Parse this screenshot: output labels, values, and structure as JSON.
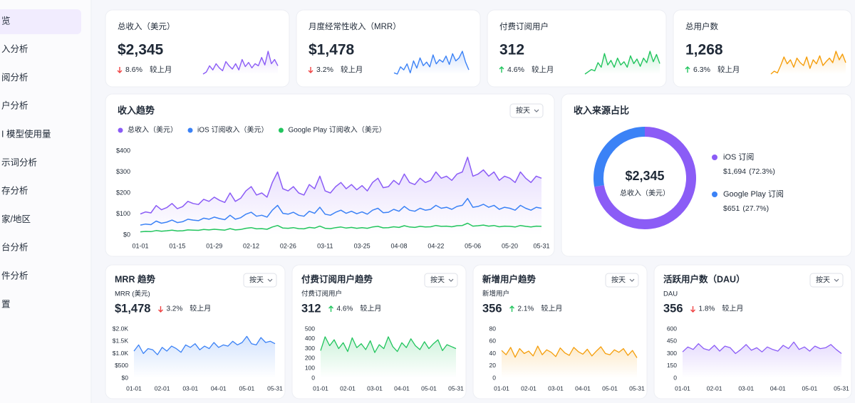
{
  "sidebar": {
    "items": [
      "览",
      "入分析",
      "阅分析",
      "户分析",
      "I 模型使用量",
      "示词分析",
      "存分析",
      "家/地区",
      "台分析",
      "件分析",
      "置"
    ],
    "active": 0
  },
  "kpis": [
    {
      "title": "总收入（美元）",
      "value": "$2,345",
      "change": "8.6%",
      "direction": "down",
      "compare": "较上月",
      "color": "#8b5cf6",
      "spark": [
        20,
        25,
        40,
        30,
        45,
        35,
        28,
        50,
        40,
        32,
        45,
        30,
        55,
        38,
        48,
        35,
        45,
        40,
        60,
        42,
        75,
        45,
        55,
        40
      ]
    },
    {
      "title": "月度经常性收入（MRR）",
      "value": "$1,478",
      "change": "3.2%",
      "direction": "down",
      "compare": "较上月",
      "color": "#3b82f6",
      "spark": [
        30,
        28,
        40,
        35,
        45,
        30,
        50,
        38,
        55,
        42,
        48,
        40,
        60,
        45,
        52,
        48,
        58,
        44,
        62,
        50,
        55,
        66,
        48,
        35
      ]
    },
    {
      "title": "付费订阅用户",
      "value": "312",
      "change": "4.6%",
      "direction": "up",
      "compare": "较上月",
      "color": "#22c55e",
      "spark": [
        25,
        30,
        35,
        32,
        50,
        40,
        70,
        45,
        55,
        40,
        60,
        45,
        52,
        40,
        65,
        48,
        58,
        42,
        60,
        50,
        75,
        52,
        68,
        48
      ]
    },
    {
      "title": "总用户数",
      "value": "1,268",
      "change": "6.3%",
      "direction": "up",
      "compare": "较上月",
      "color": "#f59e0b",
      "spark": [
        30,
        35,
        32,
        45,
        60,
        48,
        55,
        42,
        58,
        50,
        45,
        60,
        40,
        55,
        48,
        62,
        45,
        52,
        58,
        50,
        70,
        55,
        65,
        50
      ]
    }
  ],
  "chart_data": [
    {
      "type": "line",
      "title": "收入趋势",
      "interval": "按天",
      "legend": "top-left",
      "area": true,
      "categories": [
        "01-01",
        null,
        null,
        null,
        null,
        null,
        null,
        "01-15",
        null,
        null,
        null,
        null,
        null,
        null,
        "01-29",
        null,
        null,
        null,
        null,
        null,
        null,
        "02-12",
        null,
        null,
        null,
        null,
        null,
        null,
        "02-26",
        null,
        null,
        null,
        null,
        null,
        null,
        "03-11",
        null,
        null,
        null,
        null,
        null,
        null,
        "03-25",
        null,
        null,
        null,
        null,
        null,
        null,
        "04-08",
        null,
        null,
        null,
        null,
        null,
        null,
        "04-22",
        null,
        null,
        null,
        null,
        null,
        null,
        "05-06",
        null,
        null,
        null,
        null,
        null,
        null,
        "05-20",
        null,
        null,
        null,
        null,
        null,
        "05-31"
      ],
      "series": [
        {
          "name": "总收入（美元）",
          "color": "#8b5cf6",
          "values": [
            100,
            110,
            105,
            140,
            120,
            130,
            150,
            125,
            135,
            160,
            150,
            145,
            170,
            160,
            180,
            165,
            155,
            200,
            160,
            175,
            210,
            230,
            190,
            200,
            180,
            250,
            300,
            220,
            210,
            230,
            200,
            190,
            240,
            220,
            280,
            210,
            200,
            230,
            250,
            220,
            240,
            215,
            235,
            210,
            250,
            270,
            225,
            230,
            260,
            240,
            290,
            250,
            240,
            270,
            250,
            260,
            300,
            270,
            280,
            260,
            290,
            300,
            370,
            280,
            290,
            310,
            280,
            300,
            260,
            280,
            270,
            250,
            300,
            270,
            250,
            280,
            270
          ]
        },
        {
          "name": "iOS 订阅收入（美元）",
          "color": "#3b82f6",
          "values": [
            47,
            52,
            49,
            66,
            56,
            61,
            71,
            59,
            63,
            75,
            71,
            68,
            80,
            75,
            85,
            78,
            73,
            94,
            75,
            82,
            99,
            108,
            89,
            94,
            85,
            118,
            141,
            103,
            99,
            108,
            94,
            89,
            113,
            103,
            132,
            99,
            94,
            108,
            118,
            103,
            113,
            101,
            110,
            99,
            118,
            127,
            106,
            108,
            122,
            113,
            136,
            118,
            113,
            127,
            118,
            122,
            141,
            127,
            132,
            122,
            136,
            141,
            174,
            132,
            136,
            146,
            132,
            141,
            122,
            132,
            127,
            118,
            141,
            127,
            118,
            132,
            127
          ]
        },
        {
          "name": "Google Play 订阅收入（美元）",
          "color": "#22c55e",
          "values": [
            15,
            17,
            16,
            21,
            18,
            20,
            23,
            19,
            20,
            24,
            23,
            22,
            26,
            24,
            27,
            25,
            23,
            30,
            24,
            26,
            32,
            35,
            29,
            30,
            27,
            38,
            45,
            33,
            32,
            35,
            30,
            29,
            36,
            33,
            42,
            32,
            30,
            35,
            38,
            33,
            36,
            32,
            35,
            32,
            38,
            41,
            34,
            35,
            39,
            36,
            44,
            38,
            36,
            41,
            38,
            39,
            45,
            41,
            42,
            39,
            44,
            45,
            56,
            42,
            44,
            47,
            42,
            45,
            39,
            42,
            41,
            38,
            45,
            41,
            38,
            42,
            41
          ]
        }
      ],
      "ylim": [
        0,
        400
      ],
      "yticks": [
        {
          "value": 0,
          "label": "$0"
        },
        {
          "value": 100,
          "label": "$100"
        },
        {
          "value": 200,
          "label": "$200"
        },
        {
          "value": 300,
          "label": "$300"
        },
        {
          "value": 400,
          "label": "$400"
        }
      ]
    },
    {
      "type": "pie",
      "donut": true,
      "title": "收入来源占比",
      "center_value": "$2,345",
      "center_label": "总收入（美元）",
      "categories": [
        "iOS 订阅",
        "Google Play 订阅"
      ],
      "values": [
        1694,
        651
      ],
      "value_labels": [
        "$1,694",
        "$651"
      ],
      "share_labels": [
        "(72.3%)",
        "(27.7%)"
      ],
      "colors": [
        "#8b5cf6",
        "#3b82f6"
      ]
    },
    {
      "type": "line",
      "title": "MRR 趋势",
      "subtitle": "MRR (美元)",
      "value": "$1,478",
      "change": "3.2%",
      "direction": "down",
      "compare": "较上月",
      "interval": "按天",
      "area": true,
      "categories": [
        "01-01",
        null,
        null,
        null,
        null,
        null,
        "02-01",
        null,
        null,
        null,
        null,
        null,
        "03-01",
        null,
        null,
        null,
        null,
        null,
        "04-01",
        null,
        null,
        null,
        null,
        null,
        "05-01",
        null,
        null,
        null,
        null,
        null,
        "05-31"
      ],
      "series": [
        {
          "color": "#3b82f6",
          "values": [
            1100,
            1350,
            1000,
            1200,
            1150,
            950,
            1250,
            1100,
            1300,
            1200,
            1050,
            1350,
            1250,
            1400,
            1150,
            1300,
            1200,
            1450,
            1250,
            1350,
            1300,
            1500,
            1350,
            1450,
            1700,
            1400,
            1350,
            1650,
            1450,
            1500,
            1400
          ]
        }
      ],
      "ylim": [
        0,
        2000
      ],
      "yticks": [
        {
          "value": 0,
          "label": "$0"
        },
        {
          "value": 500,
          "label": "$500"
        },
        {
          "value": 1000,
          "label": "$1.0K"
        },
        {
          "value": 1500,
          "label": "$1.5K"
        },
        {
          "value": 2000,
          "label": "$2.0K"
        }
      ]
    },
    {
      "type": "line",
      "title": "付费订阅用户趋势",
      "subtitle": "付费订阅用户",
      "value": "312",
      "change": "4.6%",
      "direction": "up",
      "compare": "较上月",
      "interval": "按天",
      "area": true,
      "categories": [
        "01-01",
        null,
        null,
        null,
        null,
        null,
        "02-01",
        null,
        null,
        null,
        null,
        null,
        "03-01",
        null,
        null,
        null,
        null,
        null,
        "04-01",
        null,
        null,
        null,
        null,
        null,
        "05-01",
        null,
        null,
        null,
        null,
        null,
        "05-31"
      ],
      "series": [
        {
          "color": "#22c55e",
          "values": [
            280,
            420,
            330,
            390,
            300,
            360,
            270,
            410,
            310,
            350,
            290,
            380,
            260,
            340,
            300,
            420,
            320,
            270,
            360,
            310,
            400,
            330,
            290,
            370,
            300,
            350,
            390,
            280,
            340,
            320,
            300
          ]
        }
      ],
      "ylim": [
        0,
        500
      ],
      "yticks": [
        0,
        100,
        200,
        300,
        400,
        500
      ]
    },
    {
      "type": "line",
      "title": "新增用户趋势",
      "subtitle": "新增用户",
      "value": "356",
      "change": "2.1%",
      "direction": "up",
      "compare": "较上月",
      "interval": "按天",
      "area": true,
      "categories": [
        "01-01",
        null,
        null,
        null,
        null,
        null,
        "02-01",
        null,
        null,
        null,
        null,
        null,
        "03-01",
        null,
        null,
        null,
        null,
        null,
        "04-01",
        null,
        null,
        null,
        null,
        null,
        "05-01",
        null,
        null,
        null,
        null,
        null,
        "05-31"
      ],
      "series": [
        {
          "color": "#f59e0b",
          "values": [
            45,
            38,
            50,
            34,
            48,
            40,
            44,
            36,
            52,
            38,
            46,
            42,
            35,
            49,
            41,
            37,
            50,
            43,
            39,
            47,
            36,
            44,
            51,
            40,
            38,
            46,
            42,
            48,
            37,
            45,
            33
          ]
        }
      ],
      "ylim": [
        0,
        80
      ],
      "yticks": [
        0,
        20,
        40,
        60,
        80
      ]
    },
    {
      "type": "line",
      "title": "活跃用户数（DAU）",
      "subtitle": "DAU",
      "value": "356",
      "change": "1.8%",
      "direction": "down",
      "compare": "较上月",
      "interval": "按天",
      "area": true,
      "categories": [
        "01-01",
        null,
        null,
        null,
        null,
        null,
        "02-01",
        null,
        null,
        null,
        null,
        null,
        "03-01",
        null,
        null,
        null,
        null,
        null,
        "04-01",
        null,
        null,
        null,
        null,
        null,
        "05-01",
        null,
        null,
        null,
        null,
        null,
        "05-31"
      ],
      "series": [
        {
          "color": "#8b5cf6",
          "values": [
            320,
            380,
            350,
            420,
            360,
            340,
            400,
            330,
            390,
            370,
            300,
            350,
            410,
            340,
            370,
            320,
            380,
            350,
            330,
            400,
            360,
            440,
            350,
            380,
            330,
            390,
            360,
            370,
            410,
            350,
            300
          ]
        }
      ],
      "ylim": [
        0,
        600
      ],
      "yticks": [
        0,
        150,
        300,
        450,
        600
      ]
    }
  ]
}
